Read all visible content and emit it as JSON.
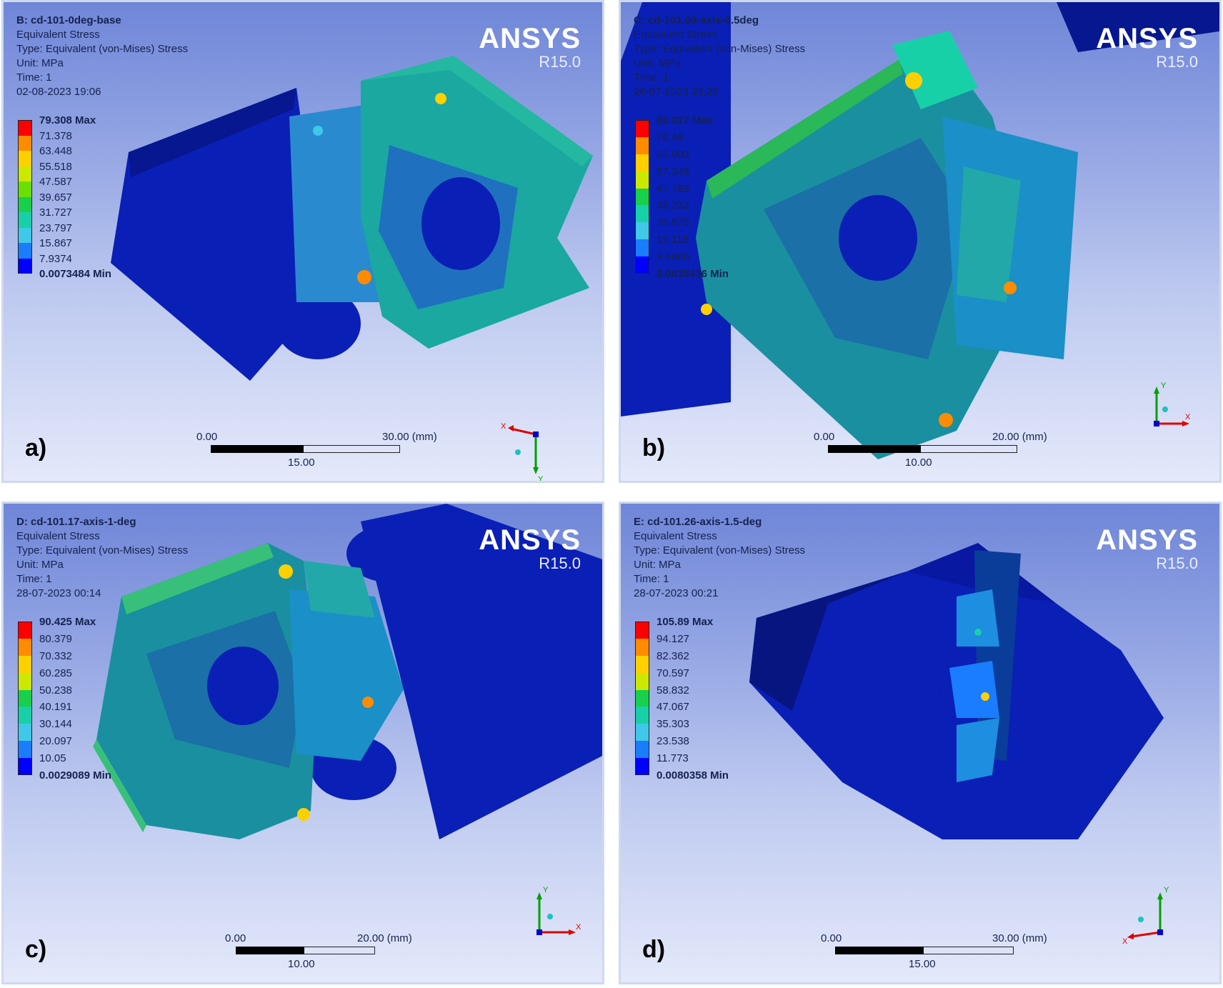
{
  "branding": {
    "name": "ANSYS",
    "version": "R15.0"
  },
  "legend_colors": [
    "#ff0000",
    "#ff8c00",
    "#ffd000",
    "#cce800",
    "#6ae000",
    "#18d04c",
    "#18d0a8",
    "#40c8e8",
    "#1a7cff",
    "#0000ff"
  ],
  "panels": [
    {
      "label": "a)",
      "title": "B: cd-101-0deg-base",
      "lines": [
        "Equivalent Stress",
        "Type: Equivalent (von-Mises) Stress",
        "Unit: MPa",
        "Time: 1",
        "02-08-2023 19:06"
      ],
      "legend_max": "79.308 Max",
      "legend_values": [
        "71.378",
        "63.448",
        "55.518",
        "47.587",
        "39.657",
        "31.727",
        "23.797",
        "15.867",
        "7.9374"
      ],
      "legend_min": "0.0073484 Min",
      "scale": {
        "left": "0.00",
        "right": "30.00 (mm)",
        "mid": "15.00"
      },
      "triad": [
        "X",
        "Y"
      ]
    },
    {
      "label": "b)",
      "title": "C: cd-101.09-axis-0.5deg",
      "lines": [
        "Equivalent Stress",
        "Type: Equivalent (von-Mises) Stress",
        "Unit: MPa",
        "Time: 1",
        "26-07-2023 23:26"
      ],
      "legend_max": "86.017 Max",
      "legend_values": [
        "76.46",
        "66.903",
        "57.346",
        "47.789",
        "38.232",
        "28.675",
        "19.118",
        "9.5606"
      ],
      "legend_min": "0.0035436 Min",
      "scale": {
        "left": "0.00",
        "right": "20.00 (mm)",
        "mid": "10.00"
      },
      "triad": [
        "X",
        "Y"
      ]
    },
    {
      "label": "c)",
      "title": "D: cd-101.17-axis-1-deg",
      "lines": [
        "Equivalent Stress",
        "Type: Equivalent (von-Mises) Stress",
        "Unit: MPa",
        "Time: 1",
        "28-07-2023 00:14"
      ],
      "legend_max": "90.425 Max",
      "legend_values": [
        "80.379",
        "70.332",
        "60.285",
        "50.238",
        "40.191",
        "30.144",
        "20.097",
        "10.05"
      ],
      "legend_min": "0.0029089 Min",
      "scale": {
        "left": "0.00",
        "right": "20.00 (mm)",
        "mid": "10.00"
      },
      "triad": [
        "X",
        "Y"
      ]
    },
    {
      "label": "d)",
      "title": "E: cd-101.26-axis-1.5-deg",
      "lines": [
        "Equivalent Stress",
        "Type: Equivalent (von-Mises) Stress",
        "Unit: MPa",
        "Time: 1",
        "28-07-2023 00:21"
      ],
      "legend_max": "105.89 Max",
      "legend_values": [
        "94.127",
        "82.362",
        "70.597",
        "58.832",
        "47.067",
        "35.303",
        "23.538",
        "11.773"
      ],
      "legend_min": "0.0080358 Min",
      "scale": {
        "left": "0.00",
        "right": "30.00 (mm)",
        "mid": "15.00"
      },
      "triad": [
        "X",
        "Y"
      ]
    }
  ]
}
